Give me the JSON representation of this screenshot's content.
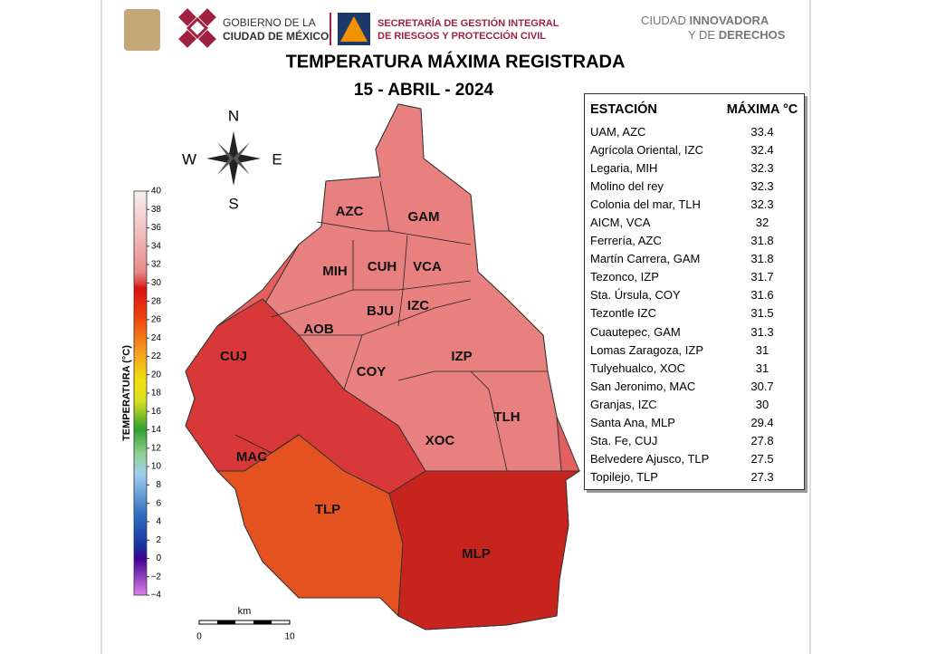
{
  "header": {
    "gov_line1": "GOBIERNO DE LA",
    "gov_line2": "CIUDAD DE MÉXICO",
    "sec_line1": "SECRETARÍA DE GESTIÓN INTEGRAL",
    "sec_line2": "DE RIESGOS Y PROTECCIÓN CIVIL",
    "slogan_a": "CIUDAD ",
    "slogan_b": "INNOVADORA",
    "slogan_c": "Y DE ",
    "slogan_d": "DERECHOS"
  },
  "title": "TEMPERATURA MÁXIMA REGISTRADA",
  "subtitle": "15 - ABRIL - 2024",
  "compass": {
    "n": "N",
    "s": "S",
    "w": "W",
    "e": "E"
  },
  "legend": {
    "title": "TEMPERATURA (°C)",
    "ticks": [
      "40",
      "38",
      "36",
      "34",
      "32",
      "30",
      "28",
      "26",
      "24",
      "22",
      "20",
      "18",
      "16",
      "14",
      "12",
      "10",
      "8",
      "6",
      "4",
      "2",
      "0",
      "−2",
      "−4"
    ]
  },
  "regions": [
    "AZC",
    "GAM",
    "MIH",
    "CUH",
    "VCA",
    "BJU",
    "IZC",
    "AOB",
    "CUJ",
    "COY",
    "IZP",
    "TLH",
    "XOC",
    "MAC",
    "TLP",
    "MLP"
  ],
  "scale": {
    "unit": "km",
    "start": "0",
    "end": "10"
  },
  "table": {
    "headers": [
      "ESTACIÓN",
      "MÁXIMA °C"
    ],
    "rows": [
      [
        "UAM, AZC",
        "33.4"
      ],
      [
        "Agrícola Oriental, IZC",
        "32.4"
      ],
      [
        "Legaria, MIH",
        "32.3"
      ],
      [
        "Molino del rey",
        "32.3"
      ],
      [
        "Colonia del mar, TLH",
        "32.3"
      ],
      [
        "AICM, VCA",
        "32"
      ],
      [
        "Ferrería, AZC",
        "31.8"
      ],
      [
        "Martín Carrera, GAM",
        "31.8"
      ],
      [
        "Tezonco, IZP",
        "31.7"
      ],
      [
        "Sta. Úrsula, COY",
        "31.6"
      ],
      [
        "Tezontle IZC",
        "31.5"
      ],
      [
        "Cuautepec, GAM",
        "31.3"
      ],
      [
        "Lomas Zaragoza, IZP",
        "31"
      ],
      [
        "Tulyehualco, XOC",
        "31"
      ],
      [
        "San Jeronimo, MAC",
        "30.7"
      ],
      [
        "Granjas, IZC",
        "30"
      ],
      [
        "Santa Ana, MLP",
        "29.4"
      ],
      [
        "Sta. Fe, CUJ",
        "27.8"
      ],
      [
        "Belvedere Ajusco, TLP",
        "27.5"
      ],
      [
        "Topilejo, TLP",
        "27.3"
      ]
    ]
  }
}
